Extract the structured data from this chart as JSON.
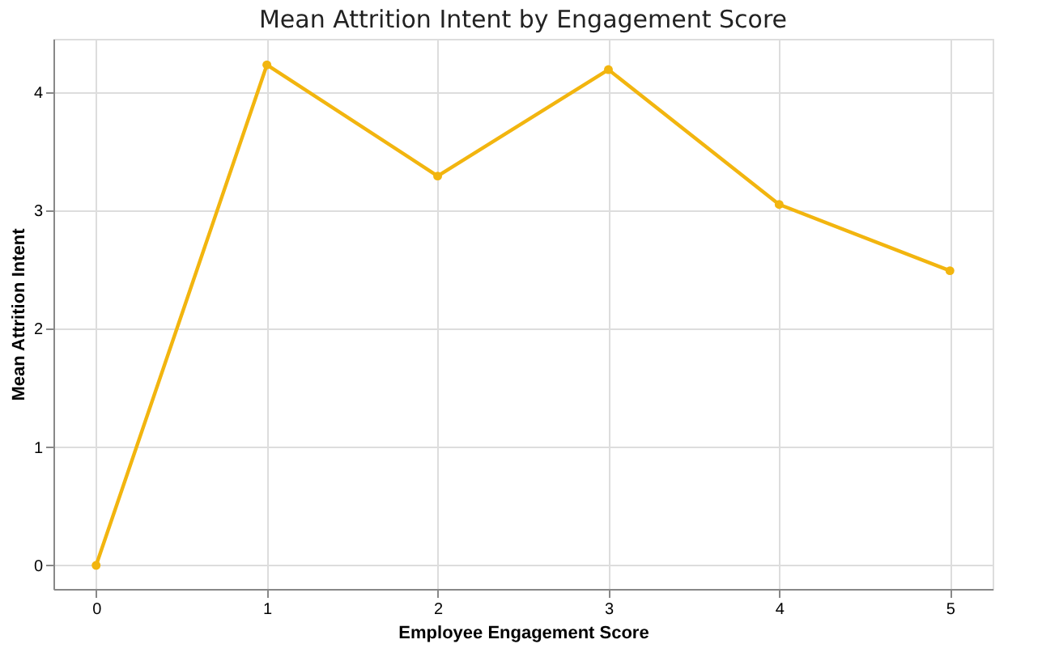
{
  "chart_data": {
    "type": "line",
    "title": "Mean Attrition Intent by Engagement Score",
    "xlabel": "Employee Engagement Score",
    "ylabel": "Mean Attrition Intent",
    "x": [
      0,
      1,
      2,
      3,
      4,
      5
    ],
    "series": [
      {
        "color": "#f2b50f",
        "values": [
          0,
          4.23,
          3.29,
          4.19,
          3.05,
          2.49
        ]
      }
    ],
    "xlim": [
      -0.25,
      5.25
    ],
    "xticks": [
      0,
      1,
      2,
      3,
      4,
      5
    ],
    "ylim": [
      -0.2,
      4.45
    ],
    "yticks": [
      0,
      1,
      2,
      3,
      4
    ],
    "grid": true,
    "marker": "circle",
    "line_style": "solid"
  }
}
